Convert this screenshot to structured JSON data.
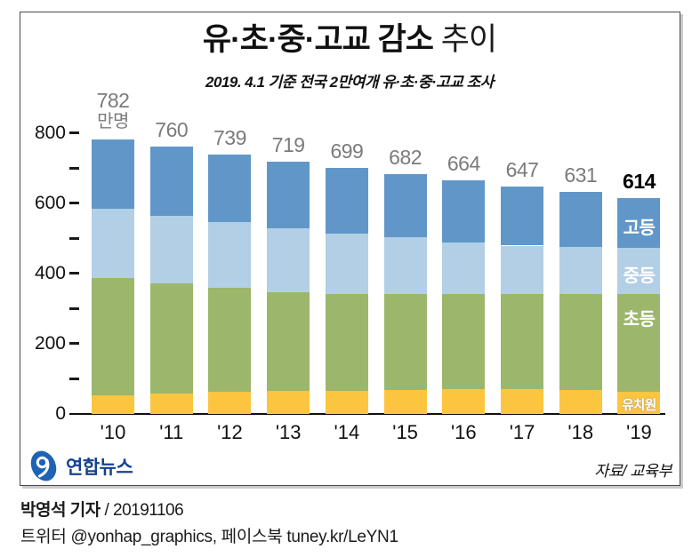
{
  "title": {
    "main": "유·초·중·고교 감소",
    "tail": " 추이"
  },
  "subtitle": "2019. 4.1 기준 전국 2만여개 유·초·중·고교 조사",
  "logo": {
    "text": "연합뉴스",
    "brand_blue": "#1e63b4",
    "text_navy": "#16418f"
  },
  "source": "자료/ 교육부",
  "footer": {
    "reporter": "박영석 기자",
    "date_text": " / 20191106",
    "social": "트위터 @yonhap_graphics, 페이스북 tuney.kr/LeYN1"
  },
  "chart_data": {
    "type": "bar",
    "subtype": "stacked",
    "unit": "만명",
    "categories": [
      "'10",
      "'11",
      "'12",
      "'13",
      "'14",
      "'15",
      "'16",
      "'17",
      "'18",
      "'19"
    ],
    "totals": [
      782,
      760,
      739,
      719,
      699,
      682,
      664,
      647,
      631,
      614
    ],
    "series": [
      {
        "key": "kindergarten",
        "name": "유치원",
        "color": "#FBC540",
        "values": [
          54,
          57,
          62,
          66,
          66,
          69,
          71,
          70,
          68,
          64
        ],
        "legend_placement": "center",
        "legend_small": true
      },
      {
        "key": "elementary",
        "name": "초등",
        "color": "#9CB66C",
        "values": [
          332,
          315,
          297,
          280,
          275,
          273,
          269,
          270,
          273,
          277
        ],
        "legend_placement": "top",
        "legend_small": false
      },
      {
        "key": "middle",
        "name": "중등",
        "color": "#B2CFE6",
        "values": [
          199,
          192,
          186,
          182,
          173,
          160,
          147,
          139,
          135,
          131
        ],
        "legend_placement": "center",
        "legend_small": false
      },
      {
        "key": "high",
        "name": "고등",
        "color": "#6197C8",
        "values": [
          197,
          196,
          194,
          191,
          185,
          180,
          177,
          168,
          155,
          142
        ],
        "legend_placement": "center",
        "legend_small": false
      }
    ],
    "y_axis": {
      "min": 0,
      "max": 800,
      "labeled_ticks": [
        0,
        200,
        400,
        600,
        800
      ],
      "minor_ticks": [
        100,
        300,
        500,
        700
      ]
    },
    "legend_position": "inside-last-bar",
    "grid": false,
    "value_label_color": "#7b7b7b",
    "last_value_color": "#000000"
  }
}
